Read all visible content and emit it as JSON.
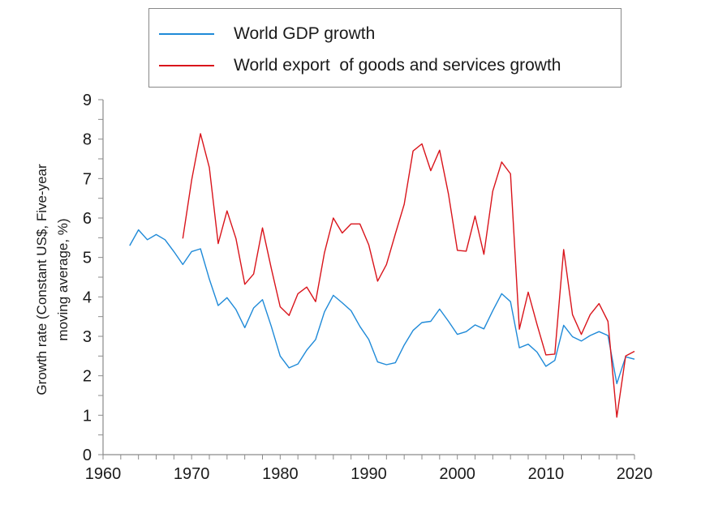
{
  "chart_data": {
    "type": "line",
    "title": "",
    "xlabel": "",
    "ylabel_lines": [
      "Growth rate (Constant US$, Five-year",
      "moving average, %)"
    ],
    "xlim": [
      1960,
      2020
    ],
    "ylim": [
      0,
      9
    ],
    "x_ticks": [
      1960,
      1970,
      1980,
      1990,
      2000,
      2010,
      2020
    ],
    "y_ticks": [
      0,
      1,
      2,
      3,
      4,
      5,
      6,
      7,
      8,
      9
    ],
    "grid": false,
    "legend_position": "top",
    "series": [
      {
        "name": "World GDP growth",
        "color": "#1f8ad8",
        "x": [
          1963,
          1964,
          1965,
          1966,
          1967,
          1968,
          1969,
          1970,
          1971,
          1972,
          1973,
          1974,
          1975,
          1976,
          1977,
          1978,
          1979,
          1980,
          1981,
          1982,
          1983,
          1984,
          1985,
          1986,
          1987,
          1988,
          1989,
          1990,
          1991,
          1992,
          1993,
          1994,
          1995,
          1996,
          1997,
          1998,
          1999,
          2000,
          2001,
          2002,
          2003,
          2004,
          2005,
          2006,
          2007,
          2008,
          2009,
          2010,
          2011,
          2012,
          2013,
          2014,
          2015,
          2016,
          2017,
          2018,
          2019,
          2020
        ],
        "values": [
          5.3,
          5.7,
          5.45,
          5.58,
          5.45,
          5.15,
          4.82,
          5.15,
          5.22,
          4.45,
          3.78,
          3.98,
          3.68,
          3.22,
          3.72,
          3.93,
          3.25,
          2.5,
          2.2,
          2.3,
          2.65,
          2.92,
          3.62,
          4.04,
          3.85,
          3.65,
          3.25,
          2.92,
          2.35,
          2.28,
          2.33,
          2.78,
          3.15,
          3.35,
          3.38,
          3.69,
          3.38,
          3.05,
          3.12,
          3.29,
          3.19,
          3.65,
          4.08,
          3.88,
          2.71,
          2.8,
          2.6,
          2.24,
          2.39,
          3.28,
          2.99,
          2.88,
          3.02,
          3.12,
          3.02,
          1.8,
          2.48,
          2.42
        ]
      },
      {
        "name": "World export  of goods and services growth",
        "color": "#d9141b",
        "x": [
          1969,
          1970,
          1971,
          1972,
          1973,
          1974,
          1975,
          1976,
          1977,
          1978,
          1979,
          1980,
          1981,
          1982,
          1983,
          1984,
          1985,
          1986,
          1987,
          1988,
          1989,
          1990,
          1991,
          1992,
          1993,
          1994,
          1995,
          1996,
          1997,
          1998,
          1999,
          2000,
          2001,
          2002,
          2003,
          2004,
          2005,
          2006,
          2007,
          2008,
          2009,
          2010,
          2011,
          2012,
          2013,
          2014,
          2015,
          2016,
          2017,
          2018,
          2019,
          2020
        ],
        "values": [
          5.48,
          6.96,
          8.14,
          7.28,
          5.35,
          6.18,
          5.48,
          4.32,
          4.58,
          5.75,
          4.72,
          3.75,
          3.53,
          4.08,
          4.25,
          3.88,
          5.12,
          6.0,
          5.62,
          5.85,
          5.85,
          5.32,
          4.4,
          4.82,
          5.6,
          6.35,
          7.7,
          7.88,
          7.2,
          7.72,
          6.6,
          5.18,
          5.16,
          6.05,
          5.08,
          6.68,
          7.42,
          7.12,
          3.18,
          4.12,
          3.3,
          2.53,
          2.55,
          5.2,
          3.55,
          3.05,
          3.55,
          3.83,
          3.38,
          0.95,
          2.5,
          2.62
        ]
      }
    ]
  }
}
